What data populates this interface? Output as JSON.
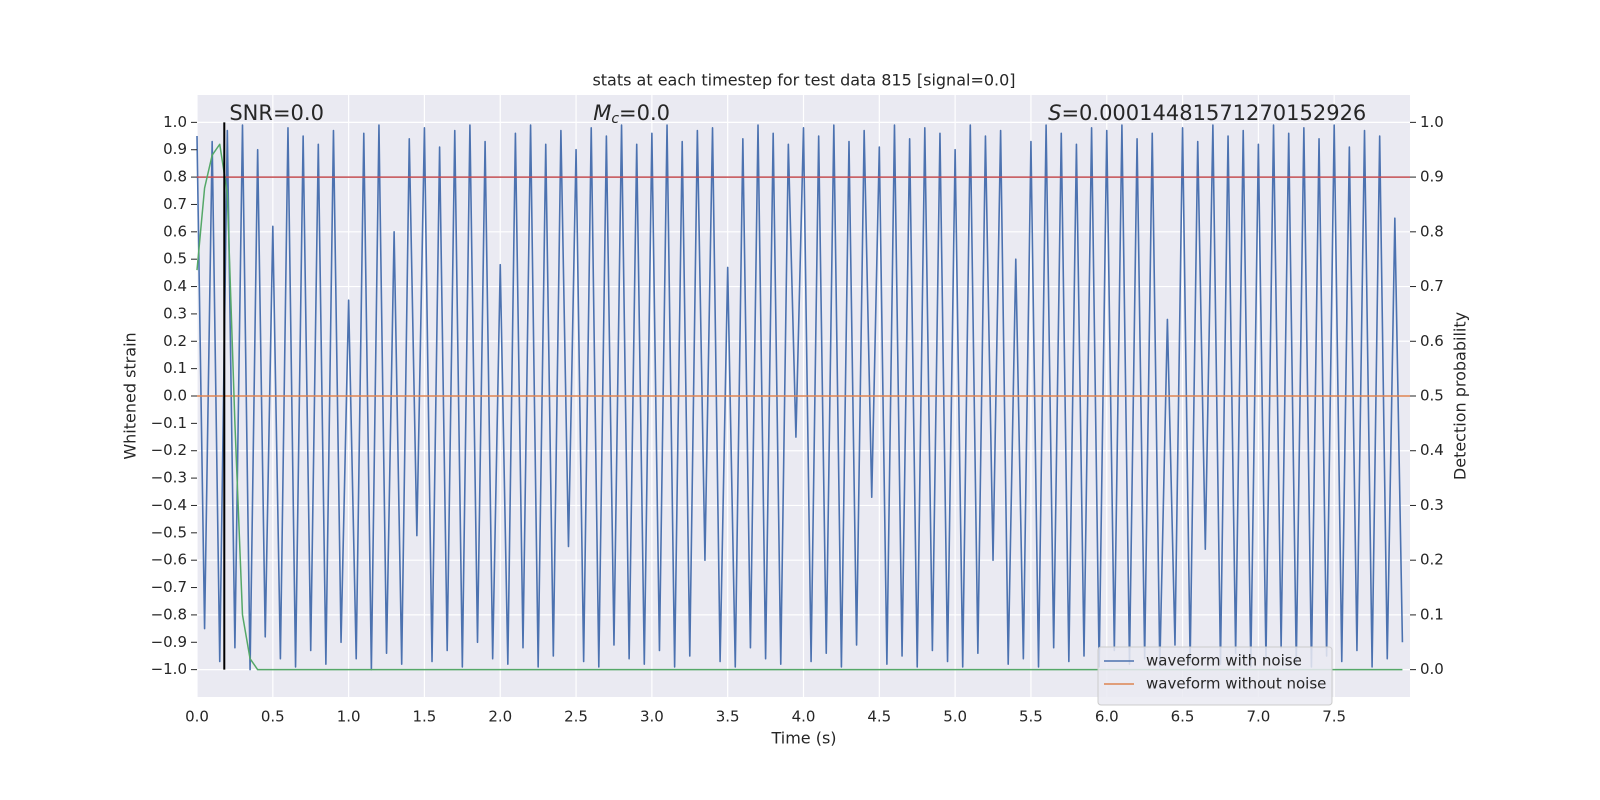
{
  "chart_data": {
    "type": "line",
    "title": "stats at each timestep for test data 815 [signal=0.0]",
    "xlabel": "Time (s)",
    "ylabel": "Whitened strain",
    "y2label": "Detection probability",
    "annotations": [
      {
        "text": "SNR=0.0",
        "x": 0.2
      },
      {
        "symbol": "M",
        "subscript": "c",
        "text": "=0.0",
        "x": 2.6
      },
      {
        "symbol": "S",
        "text": "=0.00014481571270152926",
        "x": 5.6
      }
    ],
    "xlim": [
      0,
      8.0
    ],
    "ylim": [
      -1.1,
      1.1
    ],
    "y2lim": [
      -0.05,
      1.05
    ],
    "xticks": [
      {
        "value": 0,
        "label": "0.0"
      },
      0.5,
      {
        "value": 1,
        "label": "1.0"
      },
      1.5,
      {
        "value": 2,
        "label": "2.0"
      },
      2.5,
      {
        "value": 3,
        "label": "3.0"
      },
      3.5,
      {
        "value": 4,
        "label": "4.0"
      },
      4.5,
      {
        "value": 5,
        "label": "5.0"
      },
      5.5,
      {
        "value": 6,
        "label": "6.0"
      },
      6.5,
      {
        "value": 7,
        "label": "7.0"
      },
      7.5
    ],
    "yticks": [
      {
        "value": -1,
        "label": "−1.0"
      },
      {
        "value": -0.9,
        "label": "−0.9"
      },
      {
        "value": -0.8,
        "label": "−0.8"
      },
      {
        "value": -0.7,
        "label": "−0.7"
      },
      {
        "value": -0.6,
        "label": "−0.6"
      },
      {
        "value": -0.5,
        "label": "−0.5"
      },
      {
        "value": -0.4,
        "label": "−0.4"
      },
      {
        "value": -0.3,
        "label": "−0.3"
      },
      {
        "value": -0.2,
        "label": "−0.2"
      },
      {
        "value": -0.1,
        "label": "−0.1"
      },
      {
        "value": 0,
        "label": "0.0"
      },
      0.1,
      0.2,
      0.3,
      0.4,
      0.5,
      0.6,
      0.7,
      0.8,
      0.9,
      {
        "value": 1,
        "label": "1.0"
      }
    ],
    "y2ticks": [
      {
        "value": 0,
        "label": "0.0"
      },
      0.1,
      0.2,
      0.3,
      0.4,
      0.5,
      0.6,
      0.7,
      0.8,
      0.9,
      {
        "value": 1,
        "label": "1.0"
      }
    ],
    "grid": true,
    "legend": "lower right",
    "x": [
      0,
      0.05,
      0.1,
      0.15,
      0.2,
      0.25,
      0.3,
      0.35,
      0.4,
      0.45,
      0.5,
      0.55,
      0.6,
      0.65,
      0.7,
      0.75,
      0.8,
      0.85,
      0.9,
      0.95,
      1,
      1.05,
      1.1,
      1.15,
      1.2,
      1.25,
      1.3,
      1.35,
      1.4,
      1.45,
      1.5,
      1.55,
      1.6,
      1.65,
      1.7,
      1.75,
      1.8,
      1.85,
      1.9,
      1.95,
      2,
      2.05,
      2.1,
      2.15,
      2.2,
      2.25,
      2.3,
      2.35,
      2.4,
      2.45,
      2.5,
      2.55,
      2.6,
      2.65,
      2.7,
      2.75,
      2.8,
      2.85,
      2.9,
      2.95,
      3,
      3.05,
      3.1,
      3.15,
      3.2,
      3.25,
      3.3,
      3.35,
      3.4,
      3.45,
      3.5,
      3.55,
      3.6,
      3.65,
      3.7,
      3.75,
      3.8,
      3.85,
      3.9,
      3.95,
      4,
      4.05,
      4.1,
      4.15,
      4.2,
      4.25,
      4.3,
      4.35,
      4.4,
      4.45,
      4.5,
      4.55,
      4.6,
      4.65,
      4.7,
      4.75,
      4.8,
      4.85,
      4.9,
      4.95,
      5,
      5.05,
      5.1,
      5.15,
      5.2,
      5.25,
      5.3,
      5.35,
      5.4,
      5.45,
      5.5,
      5.55,
      5.6,
      5.65,
      5.7,
      5.75,
      5.8,
      5.85,
      5.9,
      5.95,
      6,
      6.05,
      6.1,
      6.15,
      6.2,
      6.25,
      6.3,
      6.35,
      6.4,
      6.45,
      6.5,
      6.55,
      6.6,
      6.65,
      6.7,
      6.75,
      6.8,
      6.85,
      6.9,
      6.95,
      7,
      7.05,
      7.1,
      7.15,
      7.2,
      7.25,
      7.3,
      7.35,
      7.4,
      7.45,
      7.5,
      7.55,
      7.6,
      7.65,
      7.7,
      7.75,
      7.8,
      7.85,
      7.9,
      7.95
    ],
    "series": [
      {
        "name": "waveform with noise",
        "color": "#4c72b0",
        "values": [
          0.95,
          -0.85,
          0.93,
          -0.97,
          0.97,
          -0.92,
          0.99,
          -1.0,
          0.9,
          -0.88,
          0.62,
          -0.96,
          0.98,
          -0.99,
          0.95,
          -0.93,
          0.92,
          -0.98,
          0.97,
          -0.9,
          0.35,
          -0.96,
          0.96,
          -1.0,
          0.99,
          -0.94,
          0.6,
          -0.98,
          0.94,
          -0.51,
          0.98,
          -0.97,
          0.91,
          -0.93,
          0.97,
          -0.99,
          0.99,
          -0.9,
          0.93,
          -0.96,
          0.48,
          -0.98,
          0.96,
          -0.92,
          0.99,
          -0.99,
          0.92,
          -0.95,
          0.97,
          -0.55,
          0.9,
          -0.97,
          0.98,
          -0.99,
          0.95,
          -0.91,
          0.99,
          -0.96,
          0.92,
          -0.98,
          0.96,
          -0.93,
          0.99,
          -0.99,
          0.93,
          -0.95,
          0.97,
          -0.6,
          0.98,
          -0.97,
          0.47,
          -0.99,
          0.94,
          -0.92,
          0.99,
          -0.96,
          0.96,
          -0.98,
          0.92,
          -0.15,
          0.98,
          -0.97,
          0.95,
          -0.94,
          0.99,
          -0.99,
          0.93,
          -0.91,
          0.97,
          -0.37,
          0.91,
          -0.98,
          0.99,
          -0.95,
          0.94,
          -0.99,
          0.98,
          -0.93,
          0.96,
          -0.97,
          0.9,
          -0.99,
          0.99,
          -0.94,
          0.95,
          -0.6,
          0.97,
          -0.98,
          0.5,
          -0.96,
          0.93,
          -0.99,
          0.99,
          -0.92,
          0.96,
          -0.97,
          0.92,
          -0.95,
          0.98,
          -0.99,
          0.97,
          -0.93,
          0.99,
          -0.98,
          0.94,
          -0.96,
          0.96,
          -0.99,
          0.28,
          -0.91,
          0.98,
          -0.97,
          0.93,
          -0.56,
          0.99,
          -0.98,
          0.95,
          -0.94,
          0.97,
          -0.99,
          0.92,
          -0.96,
          0.99,
          -0.92,
          0.96,
          -0.98,
          0.98,
          -0.99,
          0.94,
          -0.95,
          0.99,
          -0.97,
          0.91,
          -0.93,
          0.97,
          -0.99,
          0.95,
          -0.96,
          0.65,
          -0.9
        ]
      },
      {
        "name": "waveform without noise",
        "color": "#dd8452",
        "x": [
          0,
          8.0
        ],
        "values": [
          0,
          0
        ]
      },
      {
        "color": "#55a868",
        "axis": "y2",
        "x": [
          0,
          0.05,
          0.1,
          0.15,
          0.2,
          0.25,
          0.3,
          0.35,
          0.4,
          7.95
        ],
        "values": [
          0.73,
          0.88,
          0.94,
          0.96,
          0.87,
          0.45,
          0.1,
          0.02,
          0,
          0
        ]
      }
    ],
    "threshold": {
      "value": 0.9,
      "axis": "y2",
      "color": "#c44e52"
    },
    "vline": {
      "x": 0.18,
      "ymin": -1,
      "ymax": 1,
      "color": "#000000"
    }
  }
}
